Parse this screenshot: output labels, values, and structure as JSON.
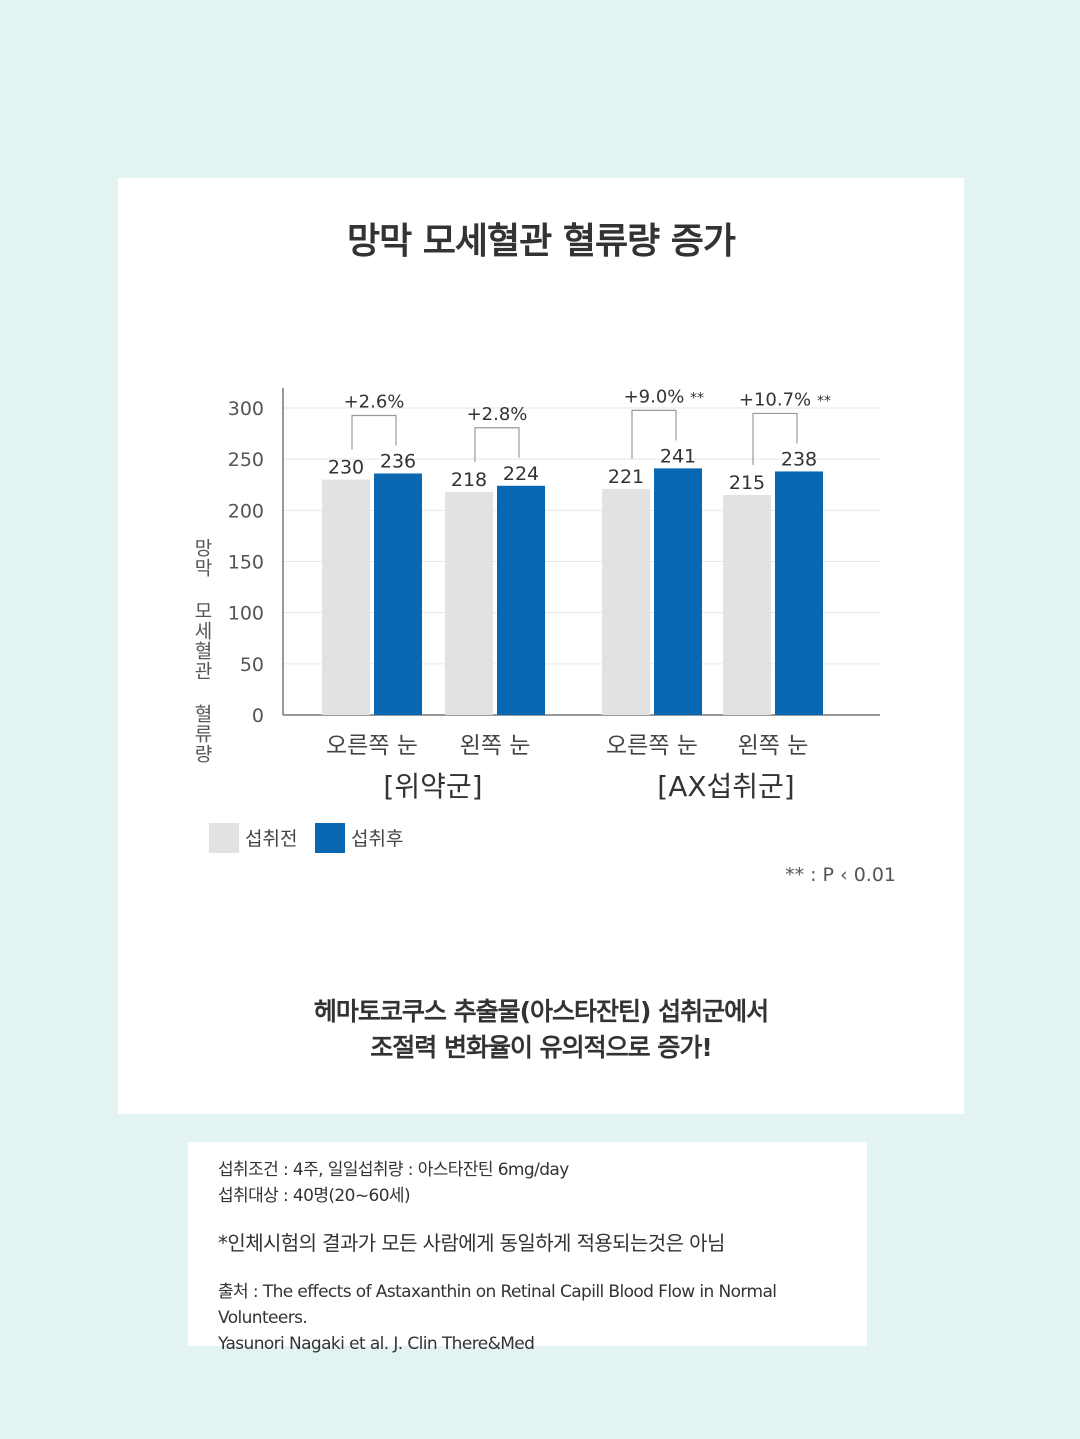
{
  "chart_data": {
    "type": "bar",
    "title": "망막 모세혈관 혈류량 증가",
    "ylabel": "망막 모세혈관 혈류량",
    "ylim": [
      0,
      300
    ],
    "yticks": [
      0,
      50,
      100,
      150,
      200,
      250,
      300
    ],
    "grid": true,
    "groups": [
      {
        "label": "[위약군]",
        "categories": [
          {
            "label": "오른쪽 눈",
            "before": 230,
            "after": 236,
            "change": "+2.6%",
            "sig": ""
          },
          {
            "label": "왼쪽 눈",
            "before": 218,
            "after": 224,
            "change": "+2.8%",
            "sig": ""
          }
        ]
      },
      {
        "label": "[AX섭취군]",
        "categories": [
          {
            "label": "오른쪽 눈",
            "before": 221,
            "after": 241,
            "change": "+9.0%",
            "sig": "**"
          },
          {
            "label": "왼쪽 눈",
            "before": 215,
            "after": 238,
            "change": "+10.7%",
            "sig": "**"
          }
        ]
      }
    ],
    "series": [
      {
        "name": "섭취전",
        "color": "#e2e2e2"
      },
      {
        "name": "섭취후",
        "color": "#0a68b3"
      }
    ],
    "legend_position": "bottom-left",
    "note": "** : P ‹ 0.01"
  },
  "conclusion": {
    "line1": "헤마토코쿠스 추출물(아스타잔틴) 섭취군에서",
    "line2": "조절력 변화율이 유의적으로 증가!"
  },
  "info": {
    "conditions": "섭취조건 : 4주, 일일섭취량 : 아스타잔틴 6mg/day",
    "subjects": "섭취대상 : 40명(20~60세)",
    "disclaimer": "*인체시험의 결과가 모든 사람에게 동일하게 적용되는것은 아님",
    "source1": "출처 : The effects of Astaxanthin on Retinal Capill Blood Flow in Normal Volunteers.",
    "source2": "Yasunori Nagaki et al. J. Clin There&Med"
  }
}
